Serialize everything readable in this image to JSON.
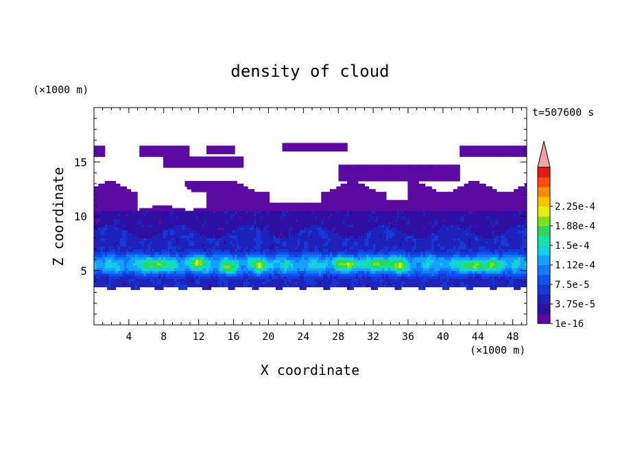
{
  "chart_data": {
    "type": "heatmap",
    "title": "density of cloud",
    "xlabel": "X coordinate",
    "ylabel": "Z coordinate",
    "x_unit": "(×1000 m)",
    "y_unit": "(×1000 m)",
    "time_label": "t=507600 s",
    "xlim": [
      0,
      49.6
    ],
    "ylim": [
      0,
      20
    ],
    "x_ticks": [
      4,
      8,
      12,
      16,
      20,
      24,
      28,
      32,
      36,
      40,
      44,
      48
    ],
    "y_ticks": [
      5,
      10,
      15
    ],
    "colorbar": {
      "labels": [
        "1e-16",
        "3.75e-5",
        "7.5e-5",
        "1.12e-4",
        "1.5e-4",
        "1.88e-4",
        "2.25e-4"
      ],
      "levels": [
        1e-16,
        1.875e-05,
        3.75e-05,
        5.625e-05,
        7.5e-05,
        9.375e-05,
        0.0001125,
        0.00013125,
        0.00015,
        0.00016875,
        0.0001875,
        0.00020625,
        0.000225,
        0.00024375
      ],
      "colors": [
        "#5a0aa0",
        "#2d0fa3",
        "#1f22b9",
        "#1638d4",
        "#0f52f0",
        "#1377ff",
        "#13a3ff",
        "#14cfe0",
        "#13e2a3",
        "#2ad85a",
        "#7fe01d",
        "#e6ee10",
        "#ffc400",
        "#ff8c00",
        "#ff4a10",
        "#e51a12"
      ],
      "over_color": "#f4a3a3"
    },
    "regions": [
      {
        "level": 0,
        "z_range": [
          3.5,
          12.7
        ],
        "note": "thin cloud layer across whole domain, gaps aloft"
      },
      {
        "level": 0,
        "z_range": [
          13.0,
          17.0
        ],
        "note": "patchy upper cloud bands"
      },
      {
        "level": 3,
        "z_range": [
          4.0,
          8.5
        ],
        "note": "denser mid layer"
      },
      {
        "level": 7,
        "z_range": [
          4.5,
          6.5
        ],
        "note": "cyan/green core"
      },
      {
        "level": 10,
        "x_centers": [
          7,
          12,
          29,
          33,
          44
        ],
        "z_center": 5.5,
        "note": "peak yellow-green cells"
      }
    ]
  }
}
